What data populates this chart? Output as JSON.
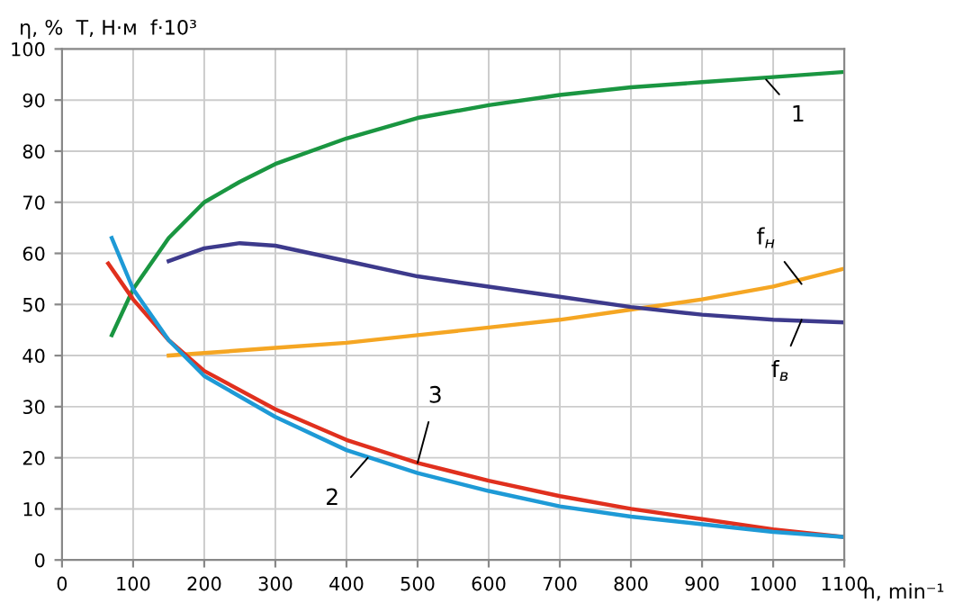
{
  "chart_data": {
    "type": "line",
    "ylabel": "η, %  T, Н·м  f·10³",
    "xlabel": "n, min⁻¹",
    "xlim": [
      0,
      1100
    ],
    "ylim": [
      0,
      100
    ],
    "xticks": [
      0,
      100,
      200,
      300,
      400,
      500,
      600,
      700,
      800,
      900,
      1000,
      1100
    ],
    "yticks": [
      0,
      10,
      20,
      30,
      40,
      50,
      60,
      70,
      80,
      90,
      100
    ],
    "grid": true,
    "legend": false,
    "marker": "none",
    "line_style": "solid",
    "series": [
      {
        "color": "#1a9641",
        "x": [
          70,
          100,
          150,
          200,
          250,
          300,
          400,
          500,
          600,
          700,
          800,
          900,
          1000,
          1100
        ],
        "values": [
          44,
          53,
          63,
          70,
          74,
          77.5,
          82.5,
          86.5,
          89,
          91,
          92.5,
          93.5,
          94.5,
          95.5
        ]
      },
      {
        "color": "#f5a623",
        "x": [
          150,
          200,
          300,
          400,
          500,
          600,
          700,
          800,
          900,
          1000,
          1100
        ],
        "values": [
          40,
          40.5,
          41.5,
          42.5,
          44,
          45.5,
          47,
          49,
          51,
          53.5,
          57
        ]
      },
      {
        "color": "#3d3a8c",
        "x": [
          150,
          200,
          250,
          300,
          400,
          500,
          600,
          700,
          800,
          900,
          1000,
          1100
        ],
        "values": [
          58.5,
          61,
          62,
          61.5,
          58.5,
          55.5,
          53.5,
          51.5,
          49.5,
          48,
          47,
          46.5
        ]
      },
      {
        "color": "#e0301e",
        "x": [
          65,
          100,
          150,
          200,
          300,
          400,
          500,
          600,
          700,
          800,
          900,
          1000,
          1100
        ],
        "values": [
          58,
          51,
          43,
          37,
          29.5,
          23.5,
          19,
          15.5,
          12.5,
          10,
          8,
          6,
          4.5
        ]
      },
      {
        "color": "#1e9ad6",
        "x": [
          70,
          100,
          150,
          200,
          300,
          400,
          500,
          600,
          700,
          800,
          900,
          1000,
          1100
        ],
        "values": [
          63,
          53,
          43,
          36,
          28,
          21.5,
          17,
          13.5,
          10.5,
          8.5,
          7,
          5.5,
          4.5
        ]
      }
    ],
    "annotations": [
      {
        "text": "1",
        "x": 990,
        "y": 94
      },
      {
        "text": "f$_{н}$",
        "x": 1040,
        "y": 54
      },
      {
        "text": "f$_{в}$",
        "x": 1040,
        "y": 47
      },
      {
        "text": "2",
        "x": 430,
        "y": 20
      },
      {
        "text": "3",
        "x": 500,
        "y": 19
      }
    ]
  }
}
